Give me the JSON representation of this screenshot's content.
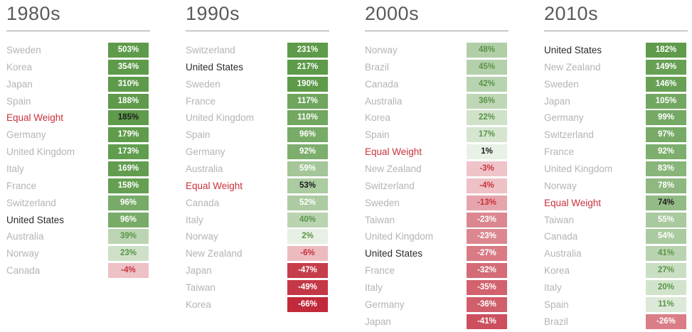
{
  "colors": {
    "positive_strong": "#5d9a49",
    "negative_strong": "#c02a3a",
    "equal_weight_label": "#c8323c",
    "us_label": "#2b2b2b",
    "muted_label": "#b4b4b4"
  },
  "chart_data": {
    "type": "table",
    "unit": "%",
    "panels": [
      {
        "decade": "1980s",
        "rows": [
          {
            "country": "Sweden",
            "value": 503,
            "label": "503%"
          },
          {
            "country": "Korea",
            "value": 354,
            "label": "354%"
          },
          {
            "country": "Japan",
            "value": 310,
            "label": "310%"
          },
          {
            "country": "Spain",
            "value": 188,
            "label": "188%"
          },
          {
            "country": "Equal Weight",
            "value": 185,
            "label": "185%"
          },
          {
            "country": "Germany",
            "value": 179,
            "label": "179%"
          },
          {
            "country": "United Kingdom",
            "value": 173,
            "label": "173%"
          },
          {
            "country": "Italy",
            "value": 169,
            "label": "169%"
          },
          {
            "country": "France",
            "value": 158,
            "label": "158%"
          },
          {
            "country": "Switzerland",
            "value": 96,
            "label": "96%"
          },
          {
            "country": "United States",
            "value": 96,
            "label": "96%"
          },
          {
            "country": "Australia",
            "value": 39,
            "label": "39%"
          },
          {
            "country": "Norway",
            "value": 23,
            "label": "23%"
          },
          {
            "country": "Canada",
            "value": -4,
            "label": "-4%"
          }
        ]
      },
      {
        "decade": "1990s",
        "rows": [
          {
            "country": "Switzerland",
            "value": 231,
            "label": "231%"
          },
          {
            "country": "United States",
            "value": 217,
            "label": "217%"
          },
          {
            "country": "Sweden",
            "value": 190,
            "label": "190%"
          },
          {
            "country": "France",
            "value": 117,
            "label": "117%"
          },
          {
            "country": "United Kingdom",
            "value": 110,
            "label": "110%"
          },
          {
            "country": "Spain",
            "value": 96,
            "label": "96%"
          },
          {
            "country": "Germany",
            "value": 92,
            "label": "92%"
          },
          {
            "country": "Australia",
            "value": 59,
            "label": "59%"
          },
          {
            "country": "Equal Weight",
            "value": 53,
            "label": "53%"
          },
          {
            "country": "Canada",
            "value": 52,
            "label": "52%"
          },
          {
            "country": "Italy",
            "value": 40,
            "label": "40%"
          },
          {
            "country": "Norway",
            "value": 2,
            "label": "2%"
          },
          {
            "country": "New Zealand",
            "value": -6,
            "label": "-6%"
          },
          {
            "country": "Japan",
            "value": -47,
            "label": "-47%"
          },
          {
            "country": "Taiwan",
            "value": -49,
            "label": "-49%"
          },
          {
            "country": "Korea",
            "value": -66,
            "label": "-66%"
          }
        ]
      },
      {
        "decade": "2000s",
        "rows": [
          {
            "country": "Norway",
            "value": 48,
            "label": "48%"
          },
          {
            "country": "Brazil",
            "value": 45,
            "label": "45%"
          },
          {
            "country": "Canada",
            "value": 42,
            "label": "42%"
          },
          {
            "country": "Australia",
            "value": 36,
            "label": "36%"
          },
          {
            "country": "Korea",
            "value": 22,
            "label": "22%"
          },
          {
            "country": "Spain",
            "value": 17,
            "label": "17%"
          },
          {
            "country": "Equal Weight",
            "value": 1,
            "label": "1%"
          },
          {
            "country": "New Zealand",
            "value": -3,
            "label": "-3%"
          },
          {
            "country": "Switzerland",
            "value": -4,
            "label": "-4%"
          },
          {
            "country": "Sweden",
            "value": -13,
            "label": "-13%"
          },
          {
            "country": "Taiwan",
            "value": -23,
            "label": "-23%"
          },
          {
            "country": "United Kingdom",
            "value": -23,
            "label": "-23%"
          },
          {
            "country": "United States",
            "value": -27,
            "label": "-27%"
          },
          {
            "country": "France",
            "value": -32,
            "label": "-32%"
          },
          {
            "country": "Italy",
            "value": -35,
            "label": "-35%"
          },
          {
            "country": "Germany",
            "value": -36,
            "label": "-36%"
          },
          {
            "country": "Japan",
            "value": -41,
            "label": "-41%"
          }
        ]
      },
      {
        "decade": "2010s",
        "rows": [
          {
            "country": "United States",
            "value": 182,
            "label": "182%"
          },
          {
            "country": "New Zealand",
            "value": 149,
            "label": "149%"
          },
          {
            "country": "Sweden",
            "value": 146,
            "label": "146%"
          },
          {
            "country": "Japan",
            "value": 105,
            "label": "105%"
          },
          {
            "country": "Germany",
            "value": 99,
            "label": "99%"
          },
          {
            "country": "Switzerland",
            "value": 97,
            "label": "97%"
          },
          {
            "country": "France",
            "value": 92,
            "label": "92%"
          },
          {
            "country": "United Kingdom",
            "value": 83,
            "label": "83%"
          },
          {
            "country": "Norway",
            "value": 78,
            "label": "78%"
          },
          {
            "country": "Equal Weight",
            "value": 74,
            "label": "74%"
          },
          {
            "country": "Taiwan",
            "value": 55,
            "label": "55%"
          },
          {
            "country": "Canada",
            "value": 54,
            "label": "54%"
          },
          {
            "country": "Australia",
            "value": 41,
            "label": "41%"
          },
          {
            "country": "Korea",
            "value": 27,
            "label": "27%"
          },
          {
            "country": "Italy",
            "value": 20,
            "label": "20%"
          },
          {
            "country": "Spain",
            "value": 11,
            "label": "11%"
          },
          {
            "country": "Brazil",
            "value": -26,
            "label": "-26%"
          }
        ]
      }
    ]
  }
}
